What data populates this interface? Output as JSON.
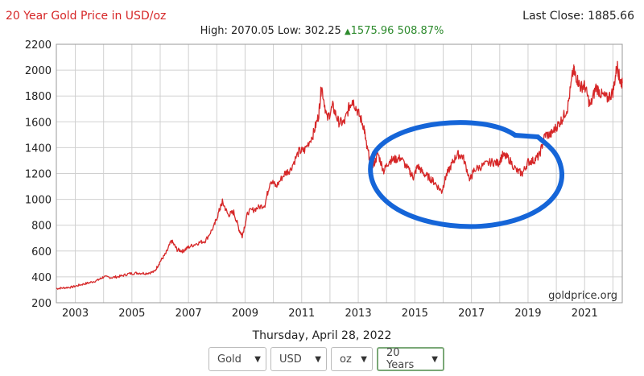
{
  "header": {
    "title": "20 Year Gold Price in USD/oz",
    "last_close_label": "Last Close:",
    "last_close_value": "1885.66",
    "high_label": "High:",
    "high_value": "2070.05",
    "low_label": "Low:",
    "low_value": "302.25",
    "change_abs": "1575.96",
    "change_pct": "508.87%"
  },
  "footer": {
    "date": "Thursday, April 28, 2022",
    "selects": [
      {
        "name": "metal",
        "value": "Gold"
      },
      {
        "name": "currency",
        "value": "USD"
      },
      {
        "name": "unit",
        "value": "oz"
      },
      {
        "name": "range",
        "value": "20 Years"
      }
    ]
  },
  "watermark": "goldprice.org",
  "colors": {
    "line": "#d62728",
    "annotation": "#1565d8",
    "grid": "#d0d0d0",
    "positive": "#2e8b2e"
  },
  "chart_data": {
    "type": "line",
    "title": "20 Year Gold Price in USD/oz",
    "xlim": [
      2002.33,
      2022.33
    ],
    "ylim": [
      200,
      2200
    ],
    "y_ticks": [
      200,
      400,
      600,
      800,
      1000,
      1200,
      1400,
      1600,
      1800,
      2000,
      2200
    ],
    "x_ticks": [
      2003,
      2005,
      2007,
      2009,
      2011,
      2013,
      2015,
      2017,
      2019,
      2021
    ],
    "grid": true,
    "series": [
      {
        "values": [
          [
            2002.33,
            310
          ],
          [
            2002.6,
            315
          ],
          [
            2002.9,
            322
          ],
          [
            2003.2,
            340
          ],
          [
            2003.5,
            355
          ],
          [
            2003.8,
            375
          ],
          [
            2004.0,
            400
          ],
          [
            2004.3,
            395
          ],
          [
            2004.6,
            405
          ],
          [
            2004.9,
            425
          ],
          [
            2005.2,
            430
          ],
          [
            2005.5,
            428
          ],
          [
            2005.8,
            440
          ],
          [
            2006.0,
            520
          ],
          [
            2006.2,
            580
          ],
          [
            2006.4,
            680
          ],
          [
            2006.6,
            610
          ],
          [
            2006.8,
            600
          ],
          [
            2007.0,
            630
          ],
          [
            2007.3,
            660
          ],
          [
            2007.6,
            680
          ],
          [
            2007.9,
            790
          ],
          [
            2008.1,
            920
          ],
          [
            2008.2,
            980
          ],
          [
            2008.4,
            880
          ],
          [
            2008.6,
            900
          ],
          [
            2008.8,
            760
          ],
          [
            2008.9,
            720
          ],
          [
            2009.1,
            900
          ],
          [
            2009.4,
            930
          ],
          [
            2009.7,
            960
          ],
          [
            2009.9,
            1150
          ],
          [
            2010.1,
            1100
          ],
          [
            2010.4,
            1200
          ],
          [
            2010.6,
            1230
          ],
          [
            2010.9,
            1370
          ],
          [
            2011.1,
            1380
          ],
          [
            2011.4,
            1500
          ],
          [
            2011.6,
            1650
          ],
          [
            2011.7,
            1880
          ],
          [
            2011.9,
            1620
          ],
          [
            2012.1,
            1720
          ],
          [
            2012.3,
            1600
          ],
          [
            2012.5,
            1590
          ],
          [
            2012.7,
            1730
          ],
          [
            2012.8,
            1770
          ],
          [
            2013.0,
            1670
          ],
          [
            2013.2,
            1560
          ],
          [
            2013.3,
            1400
          ],
          [
            2013.5,
            1250
          ],
          [
            2013.7,
            1350
          ],
          [
            2013.9,
            1220
          ],
          [
            2014.1,
            1300
          ],
          [
            2014.3,
            1310
          ],
          [
            2014.5,
            1320
          ],
          [
            2014.8,
            1220
          ],
          [
            2014.95,
            1170
          ],
          [
            2015.1,
            1260
          ],
          [
            2015.3,
            1200
          ],
          [
            2015.5,
            1170
          ],
          [
            2015.7,
            1130
          ],
          [
            2015.95,
            1060
          ],
          [
            2016.1,
            1180
          ],
          [
            2016.3,
            1270
          ],
          [
            2016.5,
            1350
          ],
          [
            2016.7,
            1330
          ],
          [
            2016.95,
            1150
          ],
          [
            2017.1,
            1230
          ],
          [
            2017.4,
            1260
          ],
          [
            2017.7,
            1290
          ],
          [
            2017.95,
            1280
          ],
          [
            2018.1,
            1340
          ],
          [
            2018.3,
            1320
          ],
          [
            2018.6,
            1220
          ],
          [
            2018.8,
            1200
          ],
          [
            2019.0,
            1290
          ],
          [
            2019.2,
            1300
          ],
          [
            2019.4,
            1340
          ],
          [
            2019.6,
            1500
          ],
          [
            2019.8,
            1500
          ],
          [
            2020.0,
            1560
          ],
          [
            2020.2,
            1620
          ],
          [
            2020.4,
            1710
          ],
          [
            2020.6,
            2000
          ],
          [
            2020.7,
            1950
          ],
          [
            2020.85,
            1870
          ],
          [
            2021.0,
            1880
          ],
          [
            2021.2,
            1720
          ],
          [
            2021.4,
            1870
          ],
          [
            2021.6,
            1810
          ],
          [
            2021.8,
            1780
          ],
          [
            2022.0,
            1830
          ],
          [
            2022.15,
            2040
          ],
          [
            2022.25,
            1920
          ],
          [
            2022.33,
            1900
          ]
        ]
      }
    ]
  }
}
